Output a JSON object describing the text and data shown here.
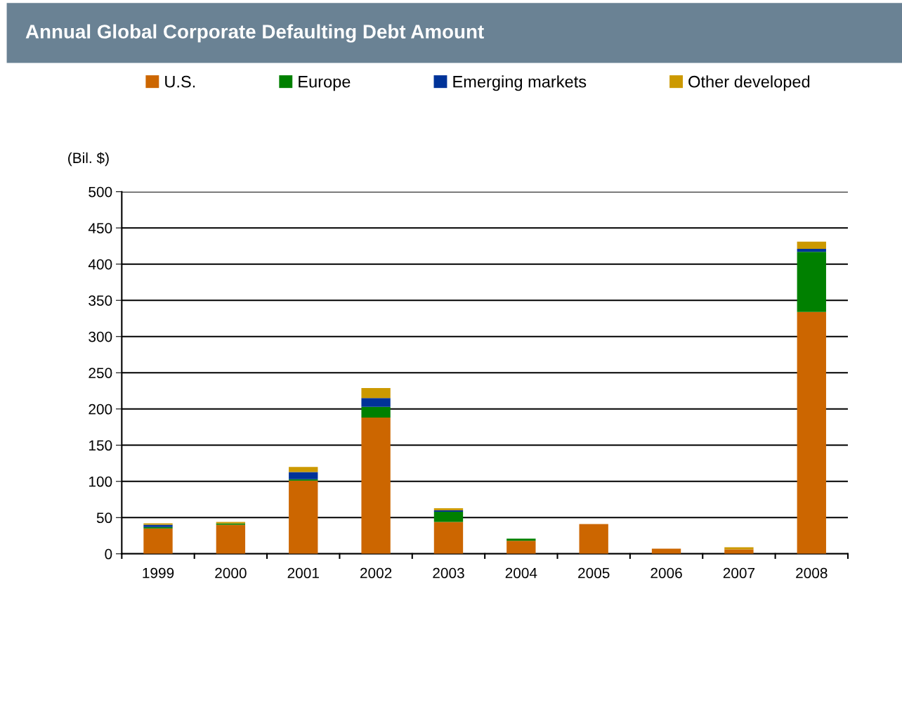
{
  "chart_data": {
    "type": "bar",
    "title": "Annual Global Corporate Defaulting Debt Amount",
    "ylabel": "(Bil. $)",
    "categories": [
      "1999",
      "2000",
      "2001",
      "2002",
      "2003",
      "2004",
      "2005",
      "2006",
      "2007",
      "2008"
    ],
    "stacked": true,
    "series": [
      {
        "name": "U.S.",
        "color": "#cc6600",
        "values": [
          35,
          40,
          101,
          188,
          44,
          18,
          41,
          7,
          6,
          334
        ]
      },
      {
        "name": "Europe",
        "color": "#008000",
        "values": [
          2,
          2,
          2,
          15,
          14,
          3,
          0,
          0,
          0,
          83
        ]
      },
      {
        "name": "Emerging markets",
        "color": "#003399",
        "values": [
          3,
          0,
          10,
          12,
          2,
          0,
          0,
          0,
          0,
          4
        ]
      },
      {
        "name": "Other developed",
        "color": "#cc9900",
        "values": [
          2,
          2,
          7,
          14,
          3,
          0,
          0,
          0,
          3,
          10
        ]
      }
    ],
    "ylim": [
      0,
      500
    ],
    "yticks": [
      0,
      50,
      100,
      150,
      200,
      250,
      300,
      350,
      400,
      450,
      500
    ],
    "grid": "y",
    "legend": "top"
  }
}
